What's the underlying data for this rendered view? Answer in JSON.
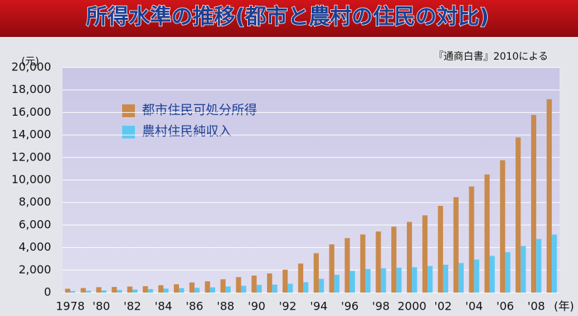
{
  "chart_data": {
    "type": "bar",
    "title": "所得水準の推移(都市と農村の住民の対比)",
    "source": "『通商白書』2010による",
    "y_unit": "(元)",
    "x_unit": "(年)",
    "categories": [
      "1978",
      null,
      "'80",
      null,
      "'82",
      null,
      "'84",
      null,
      "'86",
      null,
      "'88",
      null,
      "'90",
      null,
      "'92",
      null,
      "'94",
      null,
      "'96",
      null,
      "'98",
      null,
      "2000",
      null,
      "'02",
      null,
      "'04",
      null,
      "'06",
      null,
      "'08",
      null
    ],
    "series": [
      {
        "name": "都市住民可処分所得",
        "color": "#c98a4b",
        "values": [
          343,
          405,
          478,
          500,
          535,
          565,
          652,
          739,
          900,
          1002,
          1180,
          1374,
          1510,
          1701,
          2027,
          2577,
          3496,
          4283,
          4839,
          5160,
          5425,
          5854,
          6280,
          6860,
          7703,
          8472,
          9422,
          10493,
          11759,
          13786,
          15781,
          17175
        ]
      },
      {
        "name": "農村住民純収入",
        "color": "#5fc8f2",
        "values": [
          134,
          160,
          191,
          223,
          270,
          310,
          355,
          398,
          424,
          463,
          545,
          602,
          686,
          709,
          784,
          922,
          1221,
          1578,
          1926,
          2090,
          2162,
          2210,
          2253,
          2366,
          2476,
          2622,
          2936,
          3255,
          3587,
          4140,
          4761,
          5153
        ]
      }
    ],
    "ylim": [
      0,
      20000
    ],
    "yticks": [
      0,
      {
        "value": 2000,
        "label": "2,000"
      },
      {
        "value": 4000,
        "label": "4,000"
      },
      {
        "value": 6000,
        "label": "6,000"
      },
      {
        "value": 8000,
        "label": "8,000"
      },
      {
        "value": 10000,
        "label": "10,000"
      },
      {
        "value": 12000,
        "label": "12,000"
      },
      {
        "value": 14000,
        "label": "14,000"
      },
      {
        "value": 16000,
        "label": "16,000"
      },
      {
        "value": 18000,
        "label": "18,000"
      },
      {
        "value": 20000,
        "label": "20,000"
      }
    ],
    "grid": true
  }
}
